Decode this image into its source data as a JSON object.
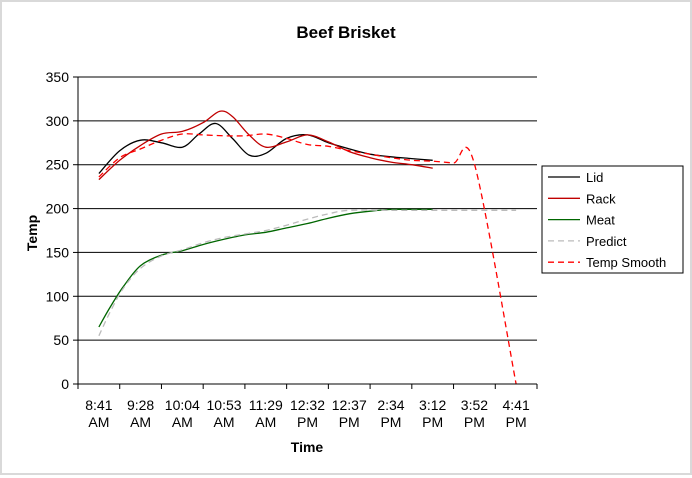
{
  "chart_data": {
    "type": "line",
    "title": "Beef Brisket",
    "xlabel": "Time",
    "ylabel": "Temp",
    "ylim": [
      0,
      350
    ],
    "yticks": [
      0,
      50,
      100,
      150,
      200,
      250,
      300,
      350
    ],
    "grid": true,
    "legend_position": "right",
    "categories": [
      [
        "8:41",
        "AM"
      ],
      [
        "9:28",
        "AM"
      ],
      [
        "10:04",
        "AM"
      ],
      [
        "10:53",
        "AM"
      ],
      [
        "11:29",
        "AM"
      ],
      [
        "12:32",
        "PM"
      ],
      [
        "12:37",
        "PM"
      ],
      [
        "2:34",
        "PM"
      ],
      [
        "3:12",
        "PM"
      ],
      [
        "3:52",
        "PM"
      ],
      [
        "4:41",
        "PM"
      ]
    ],
    "series": [
      {
        "name": "Lid",
        "color": "#000000",
        "dash": "solid",
        "points": [
          [
            0,
            240
          ],
          [
            0.5,
            266
          ],
          [
            1,
            278
          ],
          [
            1.5,
            275
          ],
          [
            2,
            270
          ],
          [
            2.4,
            285
          ],
          [
            2.8,
            297
          ],
          [
            3.2,
            280
          ],
          [
            3.6,
            261
          ],
          [
            4,
            263
          ],
          [
            4.5,
            280
          ],
          [
            5,
            284
          ],
          [
            5.5,
            275
          ],
          [
            6,
            268
          ],
          [
            6.5,
            262
          ],
          [
            7,
            259
          ],
          [
            7.5,
            257
          ],
          [
            8,
            255
          ]
        ]
      },
      {
        "name": "Rack",
        "color": "#c00000",
        "dash": "solid",
        "points": [
          [
            0,
            233
          ],
          [
            0.5,
            255
          ],
          [
            1,
            272
          ],
          [
            1.5,
            285
          ],
          [
            2,
            288
          ],
          [
            2.5,
            298
          ],
          [
            2.9,
            311
          ],
          [
            3.2,
            305
          ],
          [
            3.6,
            284
          ],
          [
            4,
            270
          ],
          [
            4.5,
            276
          ],
          [
            5,
            284
          ],
          [
            5.5,
            276
          ],
          [
            6,
            265
          ],
          [
            6.5,
            258
          ],
          [
            7,
            253
          ],
          [
            7.5,
            250
          ],
          [
            8,
            246
          ]
        ]
      },
      {
        "name": "Meat",
        "color": "#006600",
        "dash": "solid",
        "points": [
          [
            0,
            65
          ],
          [
            0.3,
            90
          ],
          [
            0.6,
            112
          ],
          [
            1,
            135
          ],
          [
            1.5,
            147
          ],
          [
            2,
            152
          ],
          [
            2.5,
            159
          ],
          [
            3,
            165
          ],
          [
            3.5,
            170
          ],
          [
            4,
            173
          ],
          [
            4.5,
            178
          ],
          [
            5,
            183
          ],
          [
            5.5,
            189
          ],
          [
            6,
            194
          ],
          [
            6.5,
            197
          ],
          [
            7,
            199
          ],
          [
            7.5,
            199
          ],
          [
            8,
            199
          ]
        ]
      },
      {
        "name": "Predict",
        "color": "#bbbbbb",
        "dash": "6,4",
        "points": [
          [
            0,
            55
          ],
          [
            0.3,
            85
          ],
          [
            0.6,
            110
          ],
          [
            1,
            132
          ],
          [
            1.5,
            146
          ],
          [
            2,
            153
          ],
          [
            2.5,
            161
          ],
          [
            3,
            167
          ],
          [
            3.5,
            171
          ],
          [
            4,
            175
          ],
          [
            4.5,
            181
          ],
          [
            5,
            188
          ],
          [
            5.5,
            194
          ],
          [
            6,
            198
          ],
          [
            7,
            198
          ],
          [
            8,
            198
          ],
          [
            9,
            198
          ],
          [
            10,
            198
          ]
        ]
      },
      {
        "name": "Temp Smooth",
        "color": "#ff0000",
        "dash": "6,4",
        "points": [
          [
            0,
            236
          ],
          [
            0.5,
            258
          ],
          [
            1,
            268
          ],
          [
            1.5,
            278
          ],
          [
            2,
            285
          ],
          [
            2.5,
            284
          ],
          [
            3,
            283
          ],
          [
            3.5,
            283
          ],
          [
            4,
            285
          ],
          [
            4.5,
            280
          ],
          [
            5,
            273
          ],
          [
            5.5,
            271
          ],
          [
            6,
            266
          ],
          [
            6.5,
            262
          ],
          [
            7,
            258
          ],
          [
            7.5,
            255
          ],
          [
            8,
            254
          ],
          [
            8.5,
            252
          ],
          [
            9,
            251
          ],
          [
            10,
            0
          ]
        ]
      }
    ]
  }
}
